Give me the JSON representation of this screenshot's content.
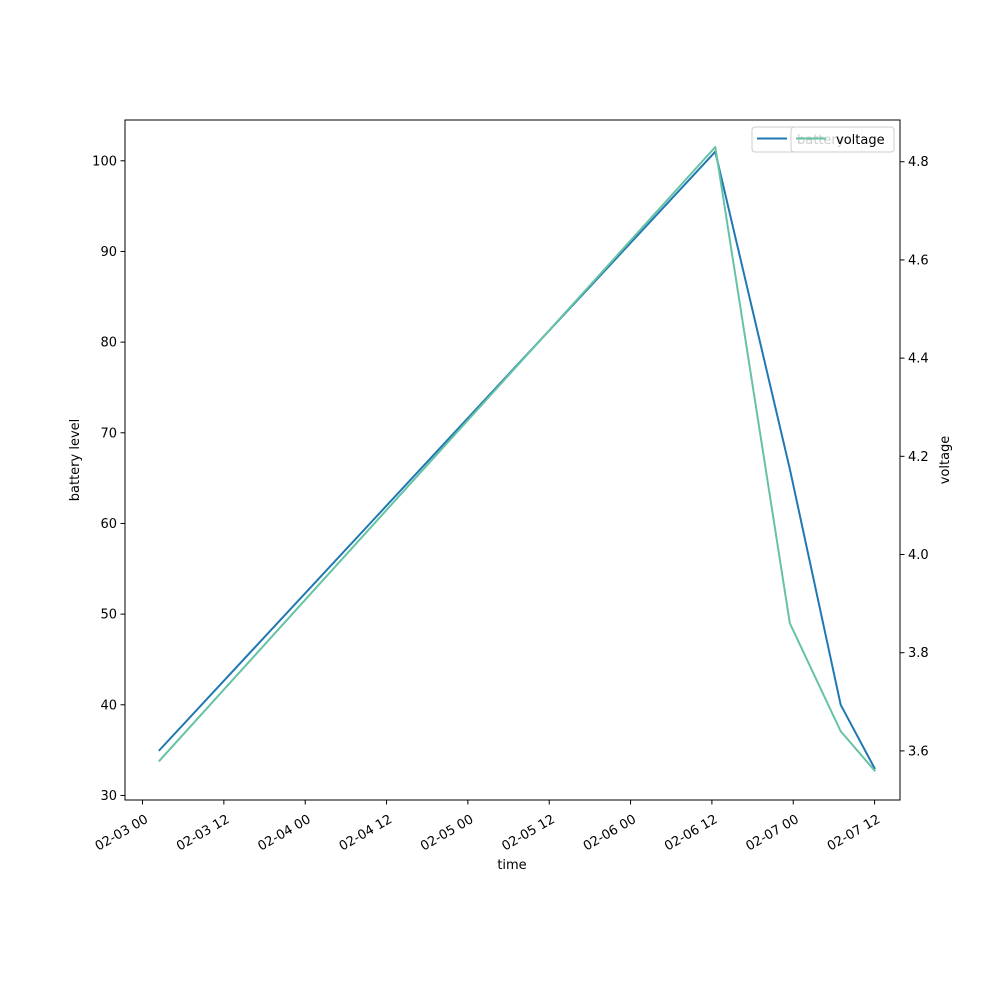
{
  "chart_data": {
    "type": "line",
    "xlabel": "time",
    "ylabel_left": "battery level",
    "ylabel_right": "voltage",
    "x_ticks": [
      "02-03 00",
      "02-03 12",
      "02-04 00",
      "02-04 12",
      "02-05 00",
      "02-05 12",
      "02-06 00",
      "02-06 12",
      "02-07 00",
      "02-07 12"
    ],
    "x_range": [
      "2023-02-02T21:25",
      "2023-02-07T15:45"
    ],
    "y_left_ticks": [
      30,
      40,
      50,
      60,
      70,
      80,
      90,
      100
    ],
    "y_left_range": [
      29.5,
      104.5
    ],
    "y_right_ticks": [
      "3.6",
      "3.8",
      "4.0",
      "4.2",
      "4.4",
      "4.6",
      "4.8"
    ],
    "y_right_range": [
      3.5,
      4.885
    ],
    "grid": false,
    "legends": [
      {
        "placement": "top-right",
        "entries": [
          "battery"
        ]
      },
      {
        "placement": "top-right",
        "entries": [
          "voltage"
        ]
      }
    ],
    "series": [
      {
        "name": "battery",
        "axis": "left",
        "color": "#1f77b4",
        "points": [
          {
            "x": "2023-02-03T02:30",
            "y": 35
          },
          {
            "x": "2023-02-06T12:30",
            "y": 101
          },
          {
            "x": "2023-02-06T23:30",
            "y": 66
          },
          {
            "x": "2023-02-07T07:00",
            "y": 40
          },
          {
            "x": "2023-02-07T12:00",
            "y": 33
          }
        ]
      },
      {
        "name": "voltage",
        "axis": "right",
        "color": "#66c2a5",
        "points": [
          {
            "x": "2023-02-03T02:30",
            "y": 3.58
          },
          {
            "x": "2023-02-06T12:30",
            "y": 4.83
          },
          {
            "x": "2023-02-06T23:30",
            "y": 3.86
          },
          {
            "x": "2023-02-07T07:00",
            "y": 3.64
          },
          {
            "x": "2023-02-07T12:00",
            "y": 3.56
          }
        ]
      }
    ]
  }
}
